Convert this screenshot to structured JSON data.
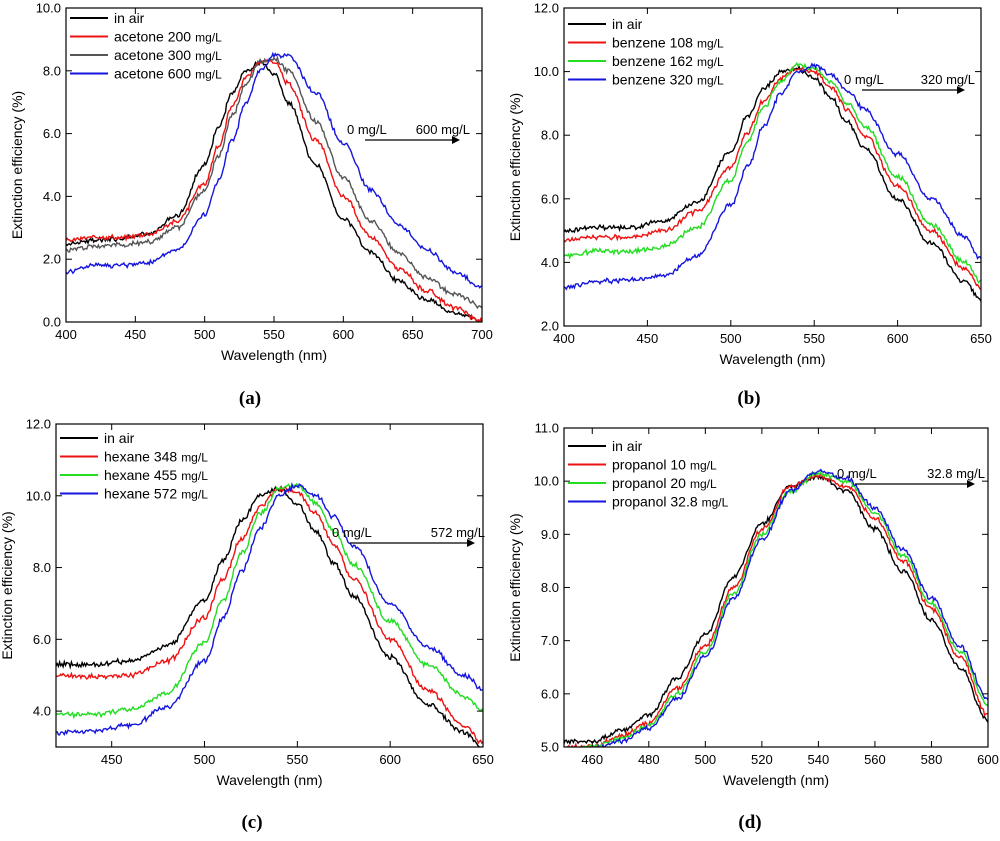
{
  "colors": {
    "air": "#000000",
    "c1": "#ee1111",
    "c2_gray": "#555555",
    "c2_green": "#22dd22",
    "c3": "#1515dd"
  },
  "chart_data": [
    {
      "type": "line",
      "caption": "(a)",
      "xlabel": "Wavelength (nm)",
      "ylabel": "Extinction efficiency (%)",
      "xlim": [
        400,
        700
      ],
      "ylim": [
        0,
        10
      ],
      "xticks": [
        "400",
        "450",
        "500",
        "550",
        "600",
        "650",
        "700"
      ],
      "yticks": [
        "0.0",
        "2.0",
        "4.0",
        "6.0",
        "8.0",
        "10.0"
      ],
      "legend": "top-left",
      "annotation": {
        "from": "0 mg/L",
        "to": "600 mg/L"
      },
      "series": [
        {
          "name": "in air",
          "unit": "",
          "color": "#000000",
          "x": [
            400,
            420,
            440,
            460,
            480,
            500,
            510,
            520,
            530,
            540,
            550,
            560,
            580,
            600,
            620,
            640,
            660,
            680,
            700
          ],
          "y": [
            2.5,
            2.6,
            2.65,
            2.8,
            3.4,
            5.0,
            6.2,
            7.3,
            8.0,
            8.25,
            7.9,
            7.0,
            5.0,
            3.3,
            2.2,
            1.3,
            0.7,
            0.3,
            0.05
          ]
        },
        {
          "name": "acetone 200",
          "unit": "mg/L",
          "color": "#ee1111",
          "x": [
            400,
            420,
            440,
            460,
            480,
            500,
            510,
            520,
            530,
            540,
            550,
            560,
            580,
            600,
            620,
            640,
            660,
            680,
            700
          ],
          "y": [
            2.6,
            2.7,
            2.7,
            2.8,
            3.2,
            4.4,
            5.6,
            6.9,
            7.8,
            8.3,
            8.3,
            7.6,
            5.8,
            4.0,
            2.7,
            1.7,
            1.0,
            0.45,
            0.05
          ]
        },
        {
          "name": "acetone 300",
          "unit": "mg/L",
          "color": "#555555",
          "x": [
            400,
            420,
            440,
            460,
            480,
            500,
            510,
            520,
            530,
            540,
            550,
            560,
            580,
            600,
            620,
            640,
            660,
            680,
            700
          ],
          "y": [
            2.3,
            2.4,
            2.45,
            2.55,
            3.0,
            4.2,
            5.3,
            6.6,
            7.6,
            8.3,
            8.4,
            8.0,
            6.4,
            4.6,
            3.2,
            2.2,
            1.4,
            0.9,
            0.5
          ]
        },
        {
          "name": "acetone 600",
          "unit": "mg/L",
          "color": "#1515dd",
          "x": [
            400,
            420,
            440,
            460,
            480,
            500,
            510,
            520,
            530,
            540,
            550,
            560,
            580,
            600,
            620,
            640,
            660,
            680,
            700
          ],
          "y": [
            1.6,
            1.8,
            1.8,
            1.9,
            2.3,
            3.4,
            4.5,
            5.8,
            7.0,
            8.0,
            8.5,
            8.5,
            7.3,
            5.7,
            4.2,
            3.1,
            2.3,
            1.6,
            1.1
          ]
        }
      ]
    },
    {
      "type": "line",
      "caption": "(b)",
      "xlabel": "Wavelength (nm)",
      "ylabel": "Extinction efficiency (%)",
      "xlim": [
        400,
        650
      ],
      "ylim": [
        2,
        12
      ],
      "xticks": [
        "400",
        "450",
        "500",
        "550",
        "600",
        "650"
      ],
      "yticks": [
        "2.0",
        "4.0",
        "6.0",
        "8.0",
        "10.0",
        "12.0"
      ],
      "legend": "top-left",
      "annotation": {
        "from": "0 mg/L",
        "to": "320 mg/L"
      },
      "series": [
        {
          "name": "in air",
          "unit": "",
          "color": "#000000",
          "x": [
            400,
            420,
            440,
            460,
            480,
            500,
            510,
            520,
            530,
            540,
            550,
            560,
            570,
            580,
            600,
            620,
            640,
            650
          ],
          "y": [
            5.0,
            5.1,
            5.1,
            5.3,
            5.9,
            7.5,
            8.6,
            9.5,
            10.0,
            10.1,
            9.8,
            9.2,
            8.4,
            7.6,
            6.0,
            4.6,
            3.4,
            2.8
          ]
        },
        {
          "name": "benzene 108",
          "unit": "mg/L",
          "color": "#ee1111",
          "x": [
            400,
            420,
            440,
            460,
            480,
            500,
            510,
            520,
            530,
            540,
            550,
            560,
            570,
            580,
            600,
            620,
            640,
            650
          ],
          "y": [
            4.7,
            4.8,
            4.8,
            5.0,
            5.6,
            7.0,
            8.1,
            9.1,
            9.8,
            10.1,
            10.0,
            9.5,
            8.8,
            8.0,
            6.4,
            5.0,
            3.8,
            3.2
          ]
        },
        {
          "name": "benzene 162",
          "unit": "mg/L",
          "color": "#22dd22",
          "x": [
            400,
            420,
            440,
            460,
            480,
            500,
            510,
            520,
            530,
            540,
            550,
            560,
            570,
            580,
            600,
            620,
            640,
            650
          ],
          "y": [
            4.2,
            4.35,
            4.35,
            4.5,
            5.1,
            6.6,
            7.8,
            8.9,
            9.7,
            10.2,
            10.1,
            9.7,
            9.0,
            8.3,
            6.7,
            5.2,
            4.0,
            3.4
          ]
        },
        {
          "name": "benzene 320",
          "unit": "mg/L",
          "color": "#1515dd",
          "x": [
            400,
            420,
            440,
            460,
            480,
            500,
            510,
            520,
            530,
            540,
            550,
            560,
            570,
            580,
            600,
            620,
            640,
            650
          ],
          "y": [
            3.2,
            3.4,
            3.45,
            3.6,
            4.2,
            5.8,
            7.0,
            8.3,
            9.3,
            10.0,
            10.2,
            9.9,
            9.4,
            8.8,
            7.4,
            6.0,
            4.8,
            4.1
          ]
        }
      ]
    },
    {
      "type": "line",
      "caption": "(c)",
      "xlabel": "Wavelength (nm)",
      "ylabel": "Extinction efficiency (%)",
      "xlim": [
        420,
        650
      ],
      "ylim": [
        3,
        12
      ],
      "xticks": [
        "450",
        "500",
        "550",
        "600",
        "650"
      ],
      "yticks": [
        "4.0",
        "6.0",
        "8.0",
        "10.0",
        "12.0"
      ],
      "legend": "top-left",
      "annotation": {
        "from": "0 mg/L",
        "to": "572 mg/L"
      },
      "series": [
        {
          "name": "in air",
          "unit": "",
          "color": "#000000",
          "x": [
            420,
            440,
            460,
            480,
            500,
            510,
            520,
            530,
            540,
            550,
            560,
            570,
            580,
            600,
            620,
            640,
            650
          ],
          "y": [
            5.3,
            5.3,
            5.4,
            5.8,
            7.1,
            8.2,
            9.3,
            10.0,
            10.2,
            9.8,
            9.0,
            8.1,
            7.2,
            5.5,
            4.2,
            3.4,
            3.0
          ]
        },
        {
          "name": "hexane 348",
          "unit": "mg/L",
          "color": "#ee1111",
          "x": [
            420,
            440,
            460,
            480,
            500,
            510,
            520,
            530,
            540,
            550,
            560,
            570,
            580,
            600,
            620,
            640,
            650
          ],
          "y": [
            5.0,
            4.95,
            5.0,
            5.4,
            6.6,
            7.7,
            8.8,
            9.7,
            10.2,
            10.1,
            9.5,
            8.6,
            7.7,
            6.0,
            4.6,
            3.6,
            3.1
          ]
        },
        {
          "name": "hexane 455",
          "unit": "mg/L",
          "color": "#22dd22",
          "x": [
            420,
            440,
            460,
            480,
            500,
            510,
            520,
            530,
            540,
            550,
            560,
            570,
            580,
            600,
            620,
            640,
            650
          ],
          "y": [
            3.9,
            3.9,
            4.05,
            4.5,
            5.9,
            7.1,
            8.4,
            9.5,
            10.2,
            10.3,
            9.8,
            9.0,
            8.1,
            6.5,
            5.3,
            4.4,
            4.0
          ]
        },
        {
          "name": "hexane 572",
          "unit": "mg/L",
          "color": "#1515dd",
          "x": [
            420,
            440,
            460,
            480,
            500,
            510,
            520,
            530,
            540,
            550,
            560,
            570,
            580,
            600,
            620,
            640,
            650
          ],
          "y": [
            3.4,
            3.45,
            3.6,
            4.1,
            5.4,
            6.6,
            7.9,
            9.1,
            10.0,
            10.3,
            10.0,
            9.4,
            8.6,
            7.0,
            5.8,
            5.0,
            4.6
          ]
        }
      ]
    },
    {
      "type": "line",
      "caption": "(d)",
      "xlabel": "Wavelength (nm)",
      "ylabel": "Extinction efficiency (%)",
      "xlim": [
        450,
        600
      ],
      "ylim": [
        5,
        11
      ],
      "xticks": [
        "460",
        "480",
        "500",
        "520",
        "540",
        "560",
        "580",
        "600"
      ],
      "yticks": [
        "5.0",
        "6.0",
        "7.0",
        "8.0",
        "9.0",
        "10.0",
        "11.0"
      ],
      "legend": "top-left",
      "annotation": {
        "from": "0 mg/L",
        "to": "32.8 mg/L"
      },
      "series": [
        {
          "name": "in air",
          "unit": "",
          "color": "#000000",
          "x": [
            452,
            460,
            470,
            480,
            490,
            500,
            510,
            520,
            530,
            540,
            550,
            560,
            570,
            580,
            590,
            600
          ],
          "y": [
            5.1,
            5.1,
            5.3,
            5.6,
            6.3,
            7.1,
            8.2,
            9.2,
            9.9,
            10.1,
            9.8,
            9.1,
            8.3,
            7.4,
            6.5,
            5.5
          ]
        },
        {
          "name": "propanol 10",
          "unit": "mg/L",
          "color": "#ee1111",
          "x": [
            452,
            460,
            470,
            480,
            490,
            500,
            510,
            520,
            530,
            540,
            550,
            560,
            570,
            580,
            590,
            600
          ],
          "y": [
            5.0,
            5.0,
            5.2,
            5.45,
            6.1,
            6.9,
            8.0,
            9.1,
            9.9,
            10.1,
            9.9,
            9.3,
            8.5,
            7.6,
            6.7,
            5.6
          ]
        },
        {
          "name": "propanol 20",
          "unit": "mg/L",
          "color": "#22dd22",
          "x": [
            452,
            460,
            470,
            480,
            490,
            500,
            510,
            520,
            530,
            540,
            550,
            560,
            570,
            580,
            590,
            600
          ],
          "y": [
            4.95,
            5.0,
            5.15,
            5.4,
            6.0,
            6.8,
            7.9,
            9.0,
            9.8,
            10.15,
            10.0,
            9.4,
            8.6,
            7.7,
            6.8,
            5.8
          ]
        },
        {
          "name": "propanol 32.8",
          "unit": "mg/L",
          "color": "#1515dd",
          "x": [
            452,
            460,
            470,
            480,
            490,
            500,
            510,
            520,
            530,
            540,
            550,
            560,
            570,
            580,
            590,
            600
          ],
          "y": [
            4.9,
            4.95,
            5.1,
            5.35,
            5.9,
            6.7,
            7.8,
            8.9,
            9.8,
            10.2,
            10.05,
            9.5,
            8.7,
            7.8,
            6.9,
            5.9
          ]
        }
      ]
    }
  ]
}
